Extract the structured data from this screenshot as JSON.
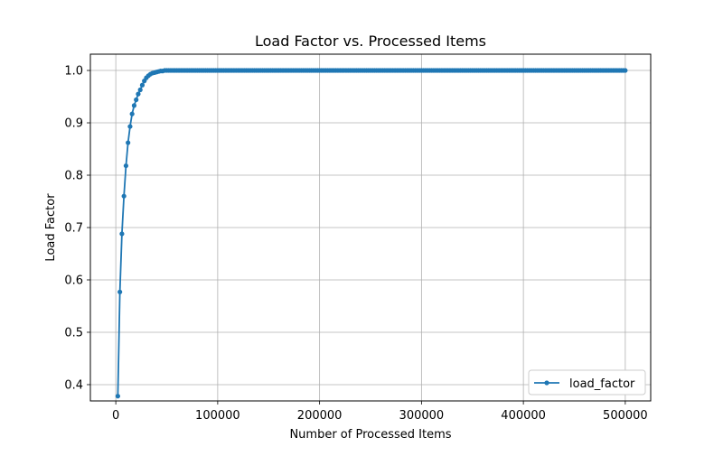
{
  "chart_data": {
    "type": "line",
    "title": "Load Factor vs. Processed Items",
    "xlabel": "Number of Processed Items",
    "ylabel": "Load Factor",
    "xlim": [
      -24950,
      524950
    ],
    "ylim": [
      0.3689,
      1.0311
    ],
    "xticks": [
      0,
      100000,
      200000,
      300000,
      400000,
      500000
    ],
    "xtick_labels": [
      "0",
      "100000",
      "200000",
      "300000",
      "400000",
      "500000"
    ],
    "yticks": [
      0.4,
      0.5,
      0.6,
      0.7,
      0.8,
      0.9,
      1.0
    ],
    "ytick_labels": [
      "0.4",
      "0.5",
      "0.6",
      "0.7",
      "0.8",
      "0.9",
      "1.0"
    ],
    "grid": true,
    "legend_position": "lower-right",
    "series": [
      {
        "name": "load_factor",
        "color": "#1f77b4",
        "marker": "circle",
        "x": [
          2000,
          4000,
          6000,
          8000,
          10000,
          12000,
          14000,
          16000,
          18000,
          20000,
          22000,
          24000,
          26000,
          28000,
          30000,
          32000,
          34000,
          36000,
          38000,
          40000,
          42000,
          44000,
          46000,
          48000,
          50000
        ],
        "y": [
          0.378,
          0.577,
          0.688,
          0.76,
          0.818,
          0.862,
          0.893,
          0.917,
          0.933,
          0.944,
          0.955,
          0.963,
          0.972,
          0.98,
          0.986,
          0.99,
          0.993,
          0.995,
          0.996,
          0.997,
          0.998,
          0.999,
          0.999,
          1.0,
          1.0
        ],
        "plateau": {
          "y": 1.0,
          "x_start": 52000,
          "x_end": 500000,
          "step": 2000
        }
      }
    ]
  }
}
